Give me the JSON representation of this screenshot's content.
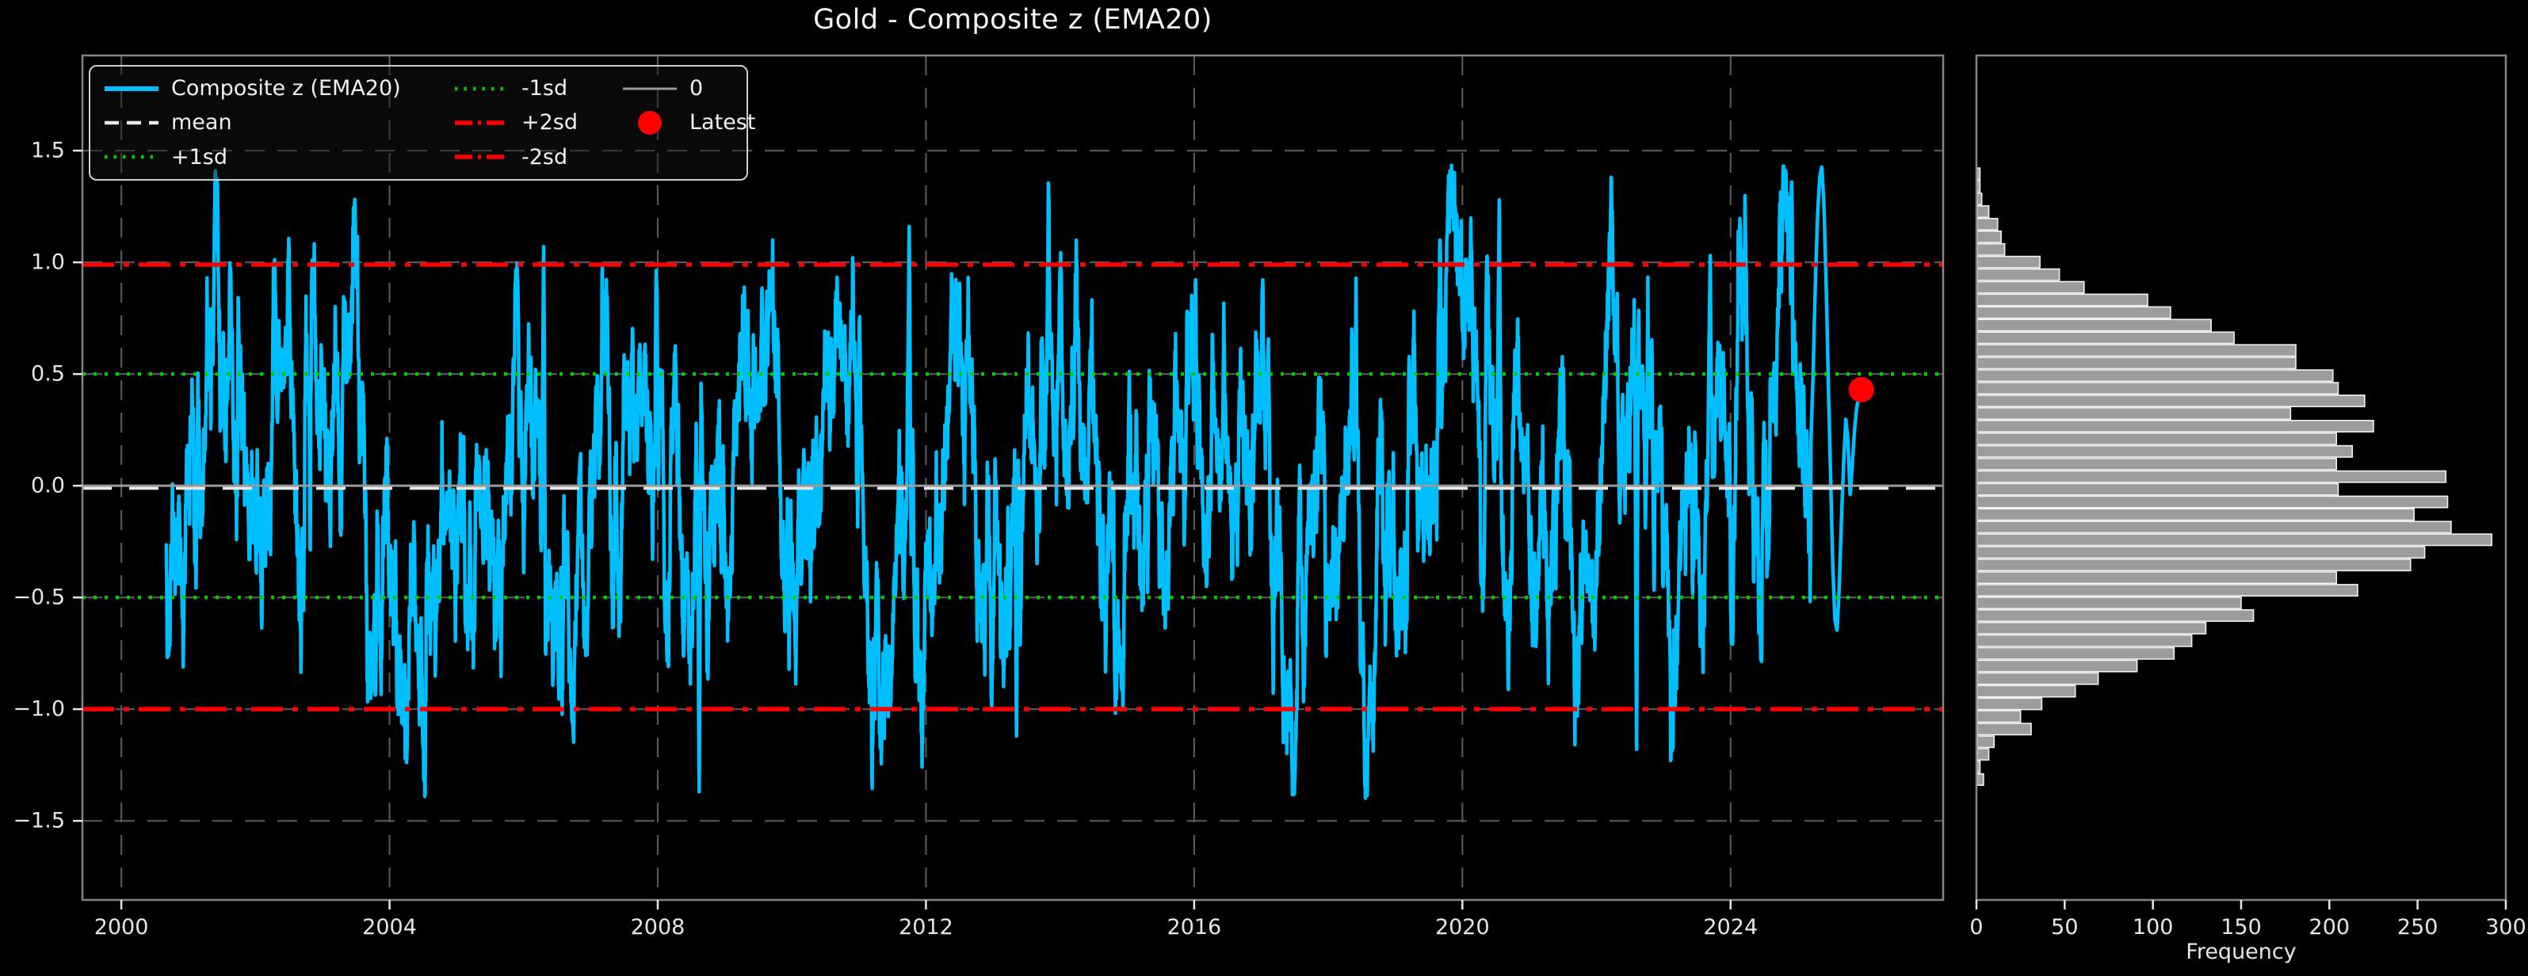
{
  "title": "Gold - Composite z (EMA20)",
  "colors": {
    "background": "#000000",
    "series": "#00BFFF",
    "mean_line": "#e8e8e8",
    "sd1_line": "#00cc00",
    "sd2_line": "#ff0000",
    "zero_line": "#9a9a9a",
    "latest_marker": "#ff0000",
    "grid": "#575757",
    "spine": "#858585",
    "tick_text": "#e6e6e6",
    "bar_fill": "#9c9c9c",
    "bar_edge": "#f2f2f2"
  },
  "legend": {
    "items": [
      {
        "label": "Composite z (EMA20)",
        "swatch": "line-solid",
        "color": "#00BFFF",
        "width": 6
      },
      {
        "label": "mean",
        "swatch": "line-dashed",
        "color": "#e8e8e8",
        "width": 4.5
      },
      {
        "label": "+1sd",
        "swatch": "line-dotted",
        "color": "#00cc00",
        "width": 4.5
      },
      {
        "label": "-1sd",
        "swatch": "line-dotted",
        "color": "#00cc00",
        "width": 4.5
      },
      {
        "label": "+2sd",
        "swatch": "line-dashdot",
        "color": "#ff0000",
        "width": 5.5
      },
      {
        "label": "-2sd",
        "swatch": "line-dashdot",
        "color": "#ff0000",
        "width": 5.5
      },
      {
        "label": "0",
        "swatch": "line-solid",
        "color": "#9a9a9a",
        "width": 3
      },
      {
        "label": "Latest",
        "swatch": "marker-circle",
        "color": "#ff0000"
      }
    ]
  },
  "chart_data": [
    {
      "type": "line",
      "title": "Gold - Composite z (EMA20)",
      "xlim": [
        1999.42,
        2027.17
      ],
      "ylim": [
        -1.854,
        1.926
      ],
      "x_ticks": [
        2000,
        2004,
        2008,
        2012,
        2016,
        2020,
        2024
      ],
      "x_tick_labels": [
        "2000",
        "2004",
        "2008",
        "2012",
        "2016",
        "2020",
        "2024"
      ],
      "y_ticks": [
        1.5,
        1.0,
        0.5,
        0.0,
        -0.5,
        -1.0,
        -1.5
      ],
      "y_tick_labels": [
        "1.5",
        "1.0",
        "0.5",
        "0.0",
        "−0.5",
        "−1.0",
        "−1.5"
      ],
      "grid": true,
      "series": {
        "name": "Composite z (EMA20)",
        "color": "#00BFFF",
        "start_year": 2000.67,
        "end_year": 2025.95,
        "points_per_year": 250,
        "seed": 11,
        "ar_coef": 0.97,
        "noise_sd": 0.122,
        "initial": -0.13,
        "landmarks": [
          {
            "year": 2006.3,
            "z": 1.07
          },
          {
            "year": 2008.62,
            "z": -1.37
          },
          {
            "year": 2011.75,
            "z": 1.16
          },
          {
            "year": 2013.35,
            "z": -1.12
          },
          {
            "year": 2018.65,
            "z": -1.05
          },
          {
            "year": 2020.55,
            "z": 1.28
          },
          {
            "year": 2022.6,
            "z": -1.18
          }
        ],
        "tail": [
          0.2,
          0.5,
          0.9,
          1.2,
          1.38,
          1.43,
          1.25,
          0.9,
          0.45,
          0.05,
          -0.35,
          -0.6,
          -0.65,
          -0.45,
          -0.15,
          0.1,
          0.3,
          0.2,
          -0.05,
          0.1,
          0.25,
          0.35,
          0.4,
          0.43
        ]
      },
      "reference_lines": [
        {
          "name": "mean",
          "value": -0.01,
          "color": "#e8e8e8",
          "style": "dashed",
          "width": 4.5
        },
        {
          "name": "+1sd",
          "value": 0.5,
          "color": "#00cc00",
          "style": "dotted",
          "width": 4.5
        },
        {
          "name": "-1sd",
          "value": -0.5,
          "color": "#00cc00",
          "style": "dotted",
          "width": 4.5
        },
        {
          "name": "+2sd",
          "value": 0.99,
          "color": "#ff0000",
          "style": "dashdot",
          "width": 5.5
        },
        {
          "name": "-2sd",
          "value": -1.0,
          "color": "#ff0000",
          "style": "dashdot",
          "width": 5.5
        },
        {
          "name": "0",
          "value": 0.0,
          "color": "#9a9a9a",
          "style": "solid",
          "width": 3
        }
      ],
      "latest": {
        "label": "Latest",
        "year": 2025.95,
        "z": 0.43,
        "color": "#ff0000",
        "radius": 16
      },
      "observed": {
        "min": -1.37,
        "max": 1.43
      }
    },
    {
      "type": "bar",
      "orientation": "horizontal",
      "xlabel": "Frequency",
      "xlim": [
        0,
        300
      ],
      "x_ticks": [
        0,
        50,
        100,
        150,
        200,
        250,
        300
      ],
      "x_tick_labels": [
        "0",
        "50",
        "100",
        "150",
        "200",
        "250",
        "300"
      ],
      "z_top": 1.425,
      "bin_z": 0.0565,
      "frequencies": [
        2,
        2,
        3,
        7,
        12,
        14,
        16,
        36,
        47,
        61,
        97,
        110,
        133,
        146,
        181,
        181,
        202,
        205,
        220,
        178,
        225,
        204,
        213,
        204,
        266,
        205,
        267,
        248,
        269,
        292,
        254,
        246,
        204,
        216,
        150,
        157,
        130,
        122,
        112,
        91,
        69,
        56,
        37,
        25,
        31,
        10,
        7,
        2,
        4
      ],
      "bar_color": "#9c9c9c",
      "bar_edge": "#f2f2f2"
    }
  ]
}
